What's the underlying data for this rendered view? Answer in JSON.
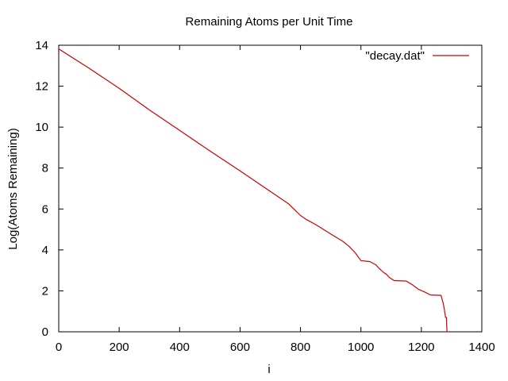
{
  "chart_data": {
    "type": "line",
    "title": "Remaining Atoms per Unit Time",
    "xlabel": "i",
    "ylabel": "Log(Atoms Remaining)",
    "xlim": [
      0,
      1400
    ],
    "ylim": [
      0,
      14
    ],
    "xticks": [
      0,
      200,
      400,
      600,
      800,
      1000,
      1200,
      1400
    ],
    "yticks": [
      0,
      2,
      4,
      6,
      8,
      10,
      12,
      14
    ],
    "xtick_labels": [
      "0",
      "200",
      "400",
      "600",
      "800",
      "1000",
      "1200",
      "1400"
    ],
    "ytick_labels": [
      "0",
      "2",
      "4",
      "6",
      "8",
      "10",
      "12",
      "14"
    ],
    "grid": false,
    "legend_position": "top-right",
    "series": [
      {
        "name": "\"decay.dat\"",
        "color": "#cc0000",
        "x": [
          0,
          100,
          200,
          300,
          400,
          500,
          600,
          700,
          760,
          780,
          800,
          820,
          850,
          900,
          940,
          960,
          980,
          1000,
          1030,
          1050,
          1060,
          1075,
          1085,
          1095,
          1110,
          1150,
          1170,
          1190,
          1210,
          1230,
          1265,
          1272,
          1276,
          1280,
          1283,
          1284,
          1285,
          1286
        ],
        "y": [
          13.82,
          12.88,
          11.9,
          10.84,
          9.84,
          8.84,
          7.86,
          6.86,
          6.26,
          5.97,
          5.68,
          5.48,
          5.24,
          4.78,
          4.42,
          4.18,
          3.88,
          3.48,
          3.43,
          3.26,
          3.1,
          2.9,
          2.8,
          2.64,
          2.5,
          2.48,
          2.3,
          2.08,
          1.95,
          1.8,
          1.78,
          1.4,
          1.1,
          0.7,
          0.7,
          0.3,
          0.0,
          0.0
        ]
      }
    ]
  }
}
